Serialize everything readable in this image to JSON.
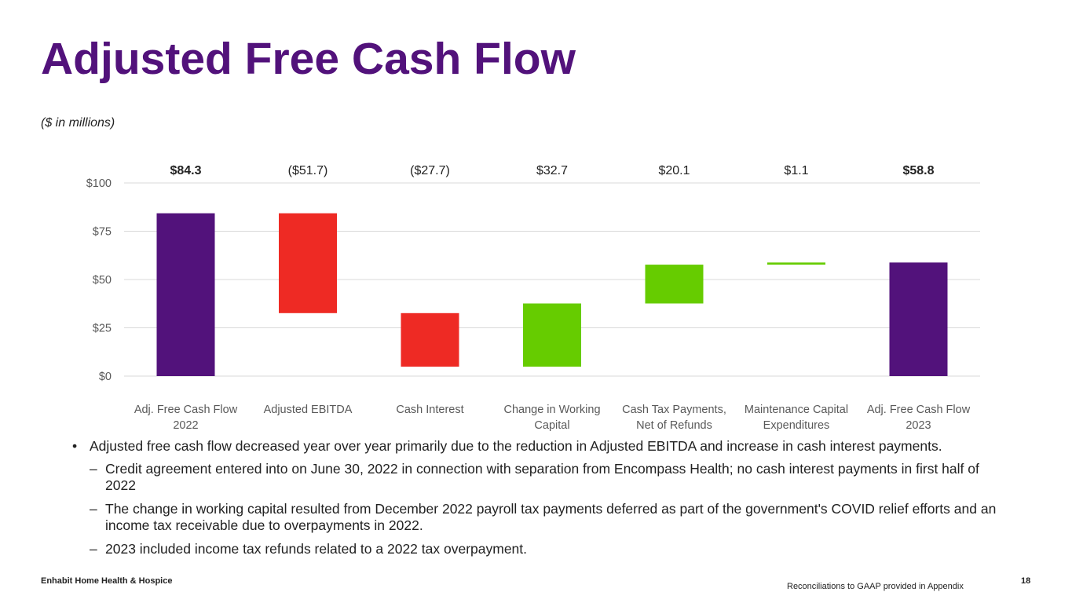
{
  "page": {
    "title": "Adjusted Free Cash Flow",
    "subtitle": "($ in millions)"
  },
  "colors": {
    "total": "#52127b",
    "decrease": "#ee2a24",
    "increase": "#66cc00",
    "grid": "#d9d9d9",
    "axis_text": "#595959"
  },
  "chart_data": {
    "type": "bar",
    "subtype": "waterfall",
    "title": "",
    "xlabel": "",
    "ylabel": "",
    "ylim": [
      0,
      100
    ],
    "yticks": [
      0,
      25,
      50,
      75,
      100
    ],
    "ytick_labels": [
      "$0",
      "$25",
      "$50",
      "$75",
      "$100"
    ],
    "grid": true,
    "categories": [
      [
        "Adj. Free Cash Flow",
        "2022"
      ],
      [
        "Adjusted EBITDA"
      ],
      [
        "Cash Interest"
      ],
      [
        "Change in Working",
        "Capital"
      ],
      [
        "Cash Tax Payments,",
        "Net of Refunds"
      ],
      [
        "Maintenance Capital",
        "Expenditures"
      ],
      [
        "Adj. Free Cash Flow",
        "2023"
      ]
    ],
    "values": [
      84.3,
      -51.7,
      -27.7,
      32.7,
      20.1,
      1.1,
      58.8
    ],
    "kinds": [
      "total",
      "decrease",
      "decrease",
      "increase",
      "increase",
      "increase",
      "total"
    ],
    "value_labels": [
      "$84.3",
      "($51.7)",
      "($27.7)",
      "$32.7",
      "$20.1",
      "$1.1",
      "$58.8"
    ],
    "bold_labels": [
      true,
      false,
      false,
      false,
      false,
      false,
      true
    ]
  },
  "bullets": [
    {
      "level": 1,
      "marker": "•",
      "text": "Adjusted free cash flow decreased year over year primarily due to the reduction in Adjusted EBITDA and increase in cash interest payments."
    },
    {
      "level": 2,
      "marker": "–",
      "text": "Credit agreement entered into on June 30, 2022 in connection with separation from Encompass Health; no cash interest payments in first half of 2022"
    },
    {
      "level": 2,
      "marker": "–",
      "text": "The change in working capital resulted from December 2022 payroll tax payments deferred as part of the government's COVID relief efforts and an income tax receivable due to overpayments in 2022."
    },
    {
      "level": 2,
      "marker": "–",
      "text": "2023 included income tax refunds related to a 2022 tax overpayment."
    }
  ],
  "footer": {
    "company": "Enhabit Home Health & Hospice",
    "note": "Reconciliations to GAAP provided in Appendix",
    "page_number": "18"
  }
}
